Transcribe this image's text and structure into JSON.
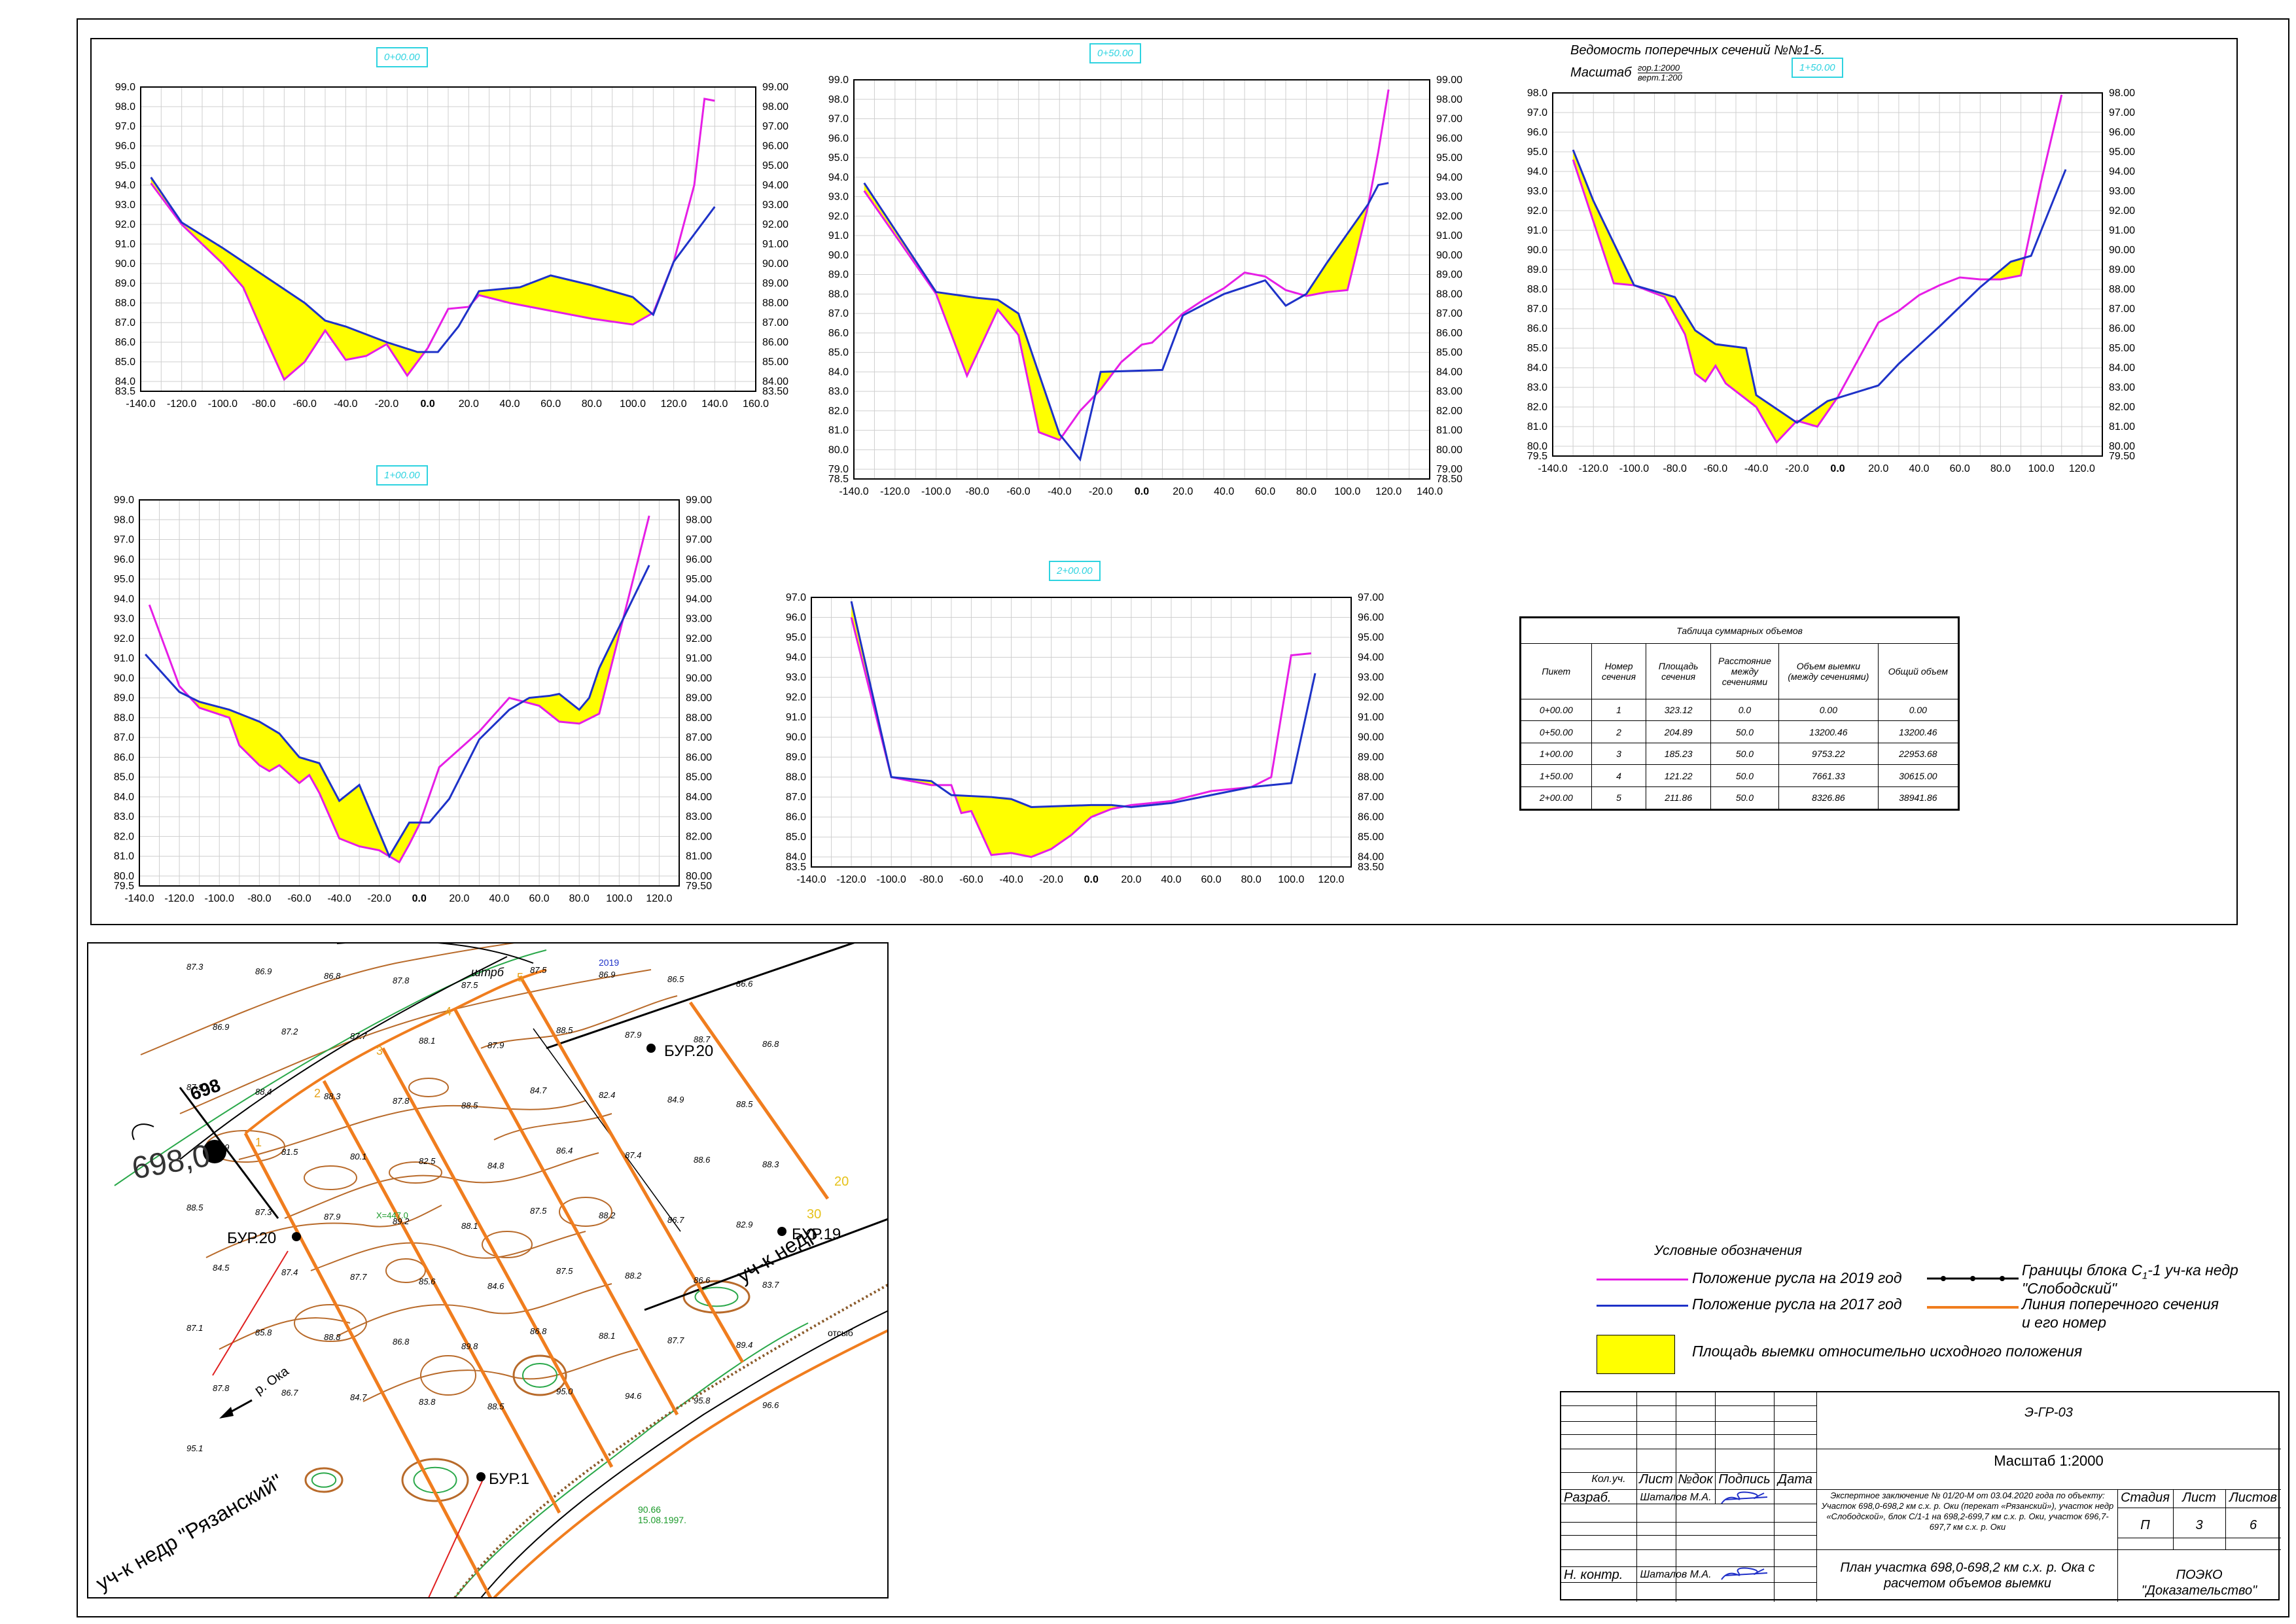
{
  "header": {
    "vedomost_title": "Ведомость поперечных сечений №№1-5.",
    "scale_label": "Масштаб",
    "scale_hor": "гор.1:2000",
    "scale_vert": "верт.1:200"
  },
  "chart_data": [
    {
      "type": "area",
      "title": "0+00.00",
      "x_ticks": [
        "-140.0",
        "-120.0",
        "-100.0",
        "-80.0",
        "-60.0",
        "-40.0",
        "-20.0",
        "0.0",
        "20.0",
        "40.0",
        "60.0",
        "80.0",
        "100.0",
        "120.0",
        "140.0",
        "160.0"
      ],
      "xlim": [
        -140,
        160
      ],
      "y_ticks_left": [
        "99.0",
        "98.0",
        "97.0",
        "96.0",
        "95.0",
        "94.0",
        "93.0",
        "92.0",
        "91.0",
        "90.0",
        "89.0",
        "88.0",
        "87.0",
        "86.0",
        "85.0",
        "84.0",
        "83.5"
      ],
      "y_ticks_right": [
        "99.00",
        "98.00",
        "97.00",
        "96.00",
        "95.00",
        "94.00",
        "93.00",
        "92.00",
        "91.00",
        "90.00",
        "89.00",
        "88.00",
        "87.00",
        "86.00",
        "85.00",
        "84.00",
        "83.50"
      ],
      "ylim": [
        83.5,
        99.0
      ],
      "series": [
        {
          "name": "Положение русла на 2019 год",
          "color": "#e61ee6",
          "x": [
            -135,
            -120,
            -100,
            -90,
            -80,
            -70,
            -60,
            -50,
            -40,
            -30,
            -20,
            -10,
            0,
            10,
            20,
            25,
            40,
            60,
            80,
            100,
            110,
            120,
            130,
            135,
            140
          ],
          "y": [
            94.1,
            92.0,
            90.0,
            88.8,
            86.4,
            84.1,
            85.0,
            86.6,
            85.1,
            85.3,
            85.9,
            84.3,
            85.7,
            87.7,
            87.8,
            88.4,
            88.0,
            87.6,
            87.2,
            86.9,
            87.5,
            90.1,
            94.0,
            98.4,
            98.3
          ]
        },
        {
          "name": "Положение русла на 2017 год",
          "color": "#1e32c8",
          "x": [
            -135,
            -120,
            -100,
            -80,
            -60,
            -50,
            -40,
            -20,
            -5,
            5,
            15,
            25,
            45,
            60,
            80,
            100,
            110,
            120,
            140
          ],
          "y": [
            94.4,
            92.1,
            90.8,
            89.4,
            88.0,
            87.1,
            86.8,
            86.0,
            85.5,
            85.5,
            86.8,
            88.6,
            88.8,
            89.4,
            88.9,
            88.3,
            87.4,
            90.1,
            92.9
          ]
        }
      ]
    },
    {
      "type": "area",
      "title": "0+50.00",
      "x_ticks": [
        "-140.0",
        "-120.0",
        "-100.0",
        "-80.0",
        "-60.0",
        "-40.0",
        "-20.0",
        "0.0",
        "20.0",
        "40.0",
        "60.0",
        "80.0",
        "100.0",
        "120.0",
        "140.0"
      ],
      "xlim": [
        -140,
        140
      ],
      "y_ticks_left": [
        "99.0",
        "98.0",
        "97.0",
        "96.0",
        "95.0",
        "94.0",
        "93.0",
        "92.0",
        "91.0",
        "90.0",
        "89.0",
        "88.0",
        "87.0",
        "86.0",
        "85.0",
        "84.0",
        "83.0",
        "82.0",
        "81.0",
        "80.0",
        "79.0",
        "78.5"
      ],
      "y_ticks_right": [
        "99.00",
        "98.00",
        "97.00",
        "96.00",
        "95.00",
        "94.00",
        "93.00",
        "92.00",
        "91.00",
        "90.00",
        "89.00",
        "88.00",
        "87.00",
        "86.00",
        "85.00",
        "84.00",
        "83.00",
        "82.00",
        "81.00",
        "80.00",
        "79.00",
        "78.50"
      ],
      "ylim": [
        78.5,
        99.0
      ],
      "series": [
        {
          "name": "Положение русла на 2019 год",
          "color": "#e61ee6",
          "x": [
            -135,
            -100,
            -85,
            -70,
            -60,
            -50,
            -40,
            -30,
            -20,
            -10,
            0,
            5,
            10,
            20,
            30,
            40,
            50,
            60,
            70,
            80,
            90,
            100,
            110,
            115,
            120
          ],
          "y": [
            93.3,
            88.0,
            83.8,
            87.2,
            85.9,
            80.9,
            80.5,
            82.0,
            83.1,
            84.5,
            85.4,
            85.5,
            86.0,
            87.0,
            87.7,
            88.3,
            89.1,
            88.9,
            88.2,
            87.9,
            88.1,
            88.2,
            92.5,
            95.3,
            98.5
          ]
        },
        {
          "name": "Положение русла на 2017 год",
          "color": "#1e32c8",
          "x": [
            -135,
            -100,
            -80,
            -70,
            -60,
            -40,
            -30,
            -20,
            10,
            20,
            40,
            60,
            70,
            80,
            90,
            100,
            110,
            115,
            120
          ],
          "y": [
            93.7,
            88.1,
            87.8,
            87.7,
            87.0,
            80.8,
            79.5,
            84.0,
            84.1,
            86.9,
            88.0,
            88.7,
            87.4,
            88.0,
            89.6,
            91.1,
            92.6,
            93.6,
            93.7
          ]
        }
      ]
    },
    {
      "type": "area",
      "title": "1+50.00",
      "x_ticks": [
        "-140.0",
        "-120.0",
        "-100.0",
        "-80.0",
        "-60.0",
        "-40.0",
        "-20.0",
        "0.0",
        "20.0",
        "40.0",
        "60.0",
        "80.0",
        "100.0",
        "120.0"
      ],
      "xlim": [
        -140,
        130
      ],
      "y_ticks_left": [
        "98.0",
        "97.0",
        "96.0",
        "95.0",
        "94.0",
        "93.0",
        "92.0",
        "91.0",
        "90.0",
        "89.0",
        "88.0",
        "87.0",
        "86.0",
        "85.0",
        "84.0",
        "83.0",
        "82.0",
        "81.0",
        "80.0",
        "79.5"
      ],
      "y_ticks_right": [
        "98.00",
        "97.00",
        "96.00",
        "95.00",
        "94.00",
        "93.00",
        "92.00",
        "91.00",
        "90.00",
        "89.00",
        "88.00",
        "87.00",
        "86.00",
        "85.00",
        "84.00",
        "83.00",
        "82.00",
        "81.00",
        "80.00",
        "79.50"
      ],
      "ylim": [
        79.5,
        98.0
      ],
      "series": [
        {
          "name": "Положение русла на 2019 год",
          "color": "#e61ee6",
          "x": [
            -130,
            -110,
            -100,
            -85,
            -75,
            -70,
            -65,
            -60,
            -55,
            -40,
            -30,
            -20,
            -10,
            0,
            20,
            30,
            40,
            50,
            60,
            70,
            80,
            90,
            100,
            110
          ],
          "y": [
            94.6,
            88.3,
            88.2,
            87.6,
            85.7,
            83.7,
            83.3,
            84.1,
            83.2,
            82.0,
            80.2,
            81.3,
            81.0,
            82.5,
            86.3,
            86.9,
            87.7,
            88.2,
            88.6,
            88.5,
            88.5,
            88.7,
            93.5,
            97.9
          ]
        },
        {
          "name": "Положение русла на 2017 год",
          "color": "#1e32c8",
          "x": [
            -130,
            -120,
            -100,
            -80,
            -70,
            -60,
            -45,
            -40,
            -20,
            -5,
            20,
            30,
            50,
            70,
            85,
            95,
            100,
            112
          ],
          "y": [
            95.1,
            92.5,
            88.2,
            87.6,
            85.9,
            85.2,
            85.0,
            82.6,
            81.2,
            82.3,
            83.1,
            84.2,
            86.1,
            88.1,
            89.4,
            89.7,
            91.0,
            94.1
          ]
        }
      ]
    },
    {
      "type": "area",
      "title": "1+00.00",
      "x_ticks": [
        "-140.0",
        "-120.0",
        "-100.0",
        "-80.0",
        "-60.0",
        "-40.0",
        "-20.0",
        "0.0",
        "20.0",
        "40.0",
        "60.0",
        "80.0",
        "100.0",
        "120.0"
      ],
      "xlim": [
        -140,
        130
      ],
      "y_ticks_left": [
        "99.0",
        "98.0",
        "97.0",
        "96.0",
        "95.0",
        "94.0",
        "93.0",
        "92.0",
        "91.0",
        "90.0",
        "89.0",
        "88.0",
        "87.0",
        "86.0",
        "85.0",
        "84.0",
        "83.0",
        "82.0",
        "81.0",
        "80.0",
        "79.5"
      ],
      "y_ticks_right": [
        "99.00",
        "98.00",
        "97.00",
        "96.00",
        "95.00",
        "94.00",
        "93.00",
        "92.00",
        "91.00",
        "90.00",
        "89.00",
        "88.00",
        "87.00",
        "86.00",
        "85.00",
        "84.00",
        "83.00",
        "82.00",
        "81.00",
        "80.00",
        "79.50"
      ],
      "ylim": [
        79.5,
        99.0
      ],
      "series": [
        {
          "name": "Положение русла на 2019 год",
          "color": "#e61ee6",
          "x": [
            -135,
            -120,
            -110,
            -95,
            -90,
            -80,
            -75,
            -70,
            -60,
            -55,
            -50,
            -40,
            -30,
            -20,
            -10,
            -5,
            0,
            10,
            30,
            45,
            60,
            70,
            80,
            90,
            115
          ],
          "y": [
            93.7,
            89.6,
            88.5,
            88.0,
            86.6,
            85.6,
            85.3,
            85.6,
            84.7,
            85.1,
            84.2,
            81.9,
            81.5,
            81.3,
            80.7,
            81.6,
            82.6,
            85.5,
            87.3,
            89.0,
            88.6,
            87.8,
            87.7,
            88.2,
            98.2
          ]
        },
        {
          "name": "Положение русла на 2017 год",
          "color": "#1e32c8",
          "x": [
            -137,
            -120,
            -110,
            -95,
            -80,
            -70,
            -60,
            -50,
            -40,
            -30,
            -15,
            -5,
            0,
            5,
            15,
            30,
            45,
            55,
            65,
            70,
            80,
            85,
            90,
            115
          ],
          "y": [
            91.2,
            89.3,
            88.8,
            88.4,
            87.8,
            87.2,
            86.0,
            85.7,
            83.8,
            84.6,
            81.0,
            82.7,
            82.7,
            82.7,
            83.9,
            86.9,
            88.4,
            89.0,
            89.1,
            89.2,
            88.4,
            89.0,
            90.5,
            95.7
          ]
        }
      ]
    },
    {
      "type": "area",
      "title": "2+00.00",
      "x_ticks": [
        "-140.0",
        "-120.0",
        "-100.0",
        "-80.0",
        "-60.0",
        "-40.0",
        "-20.0",
        "0.0",
        "20.0",
        "40.0",
        "60.0",
        "80.0",
        "100.0",
        "120.0"
      ],
      "xlim": [
        -140,
        130
      ],
      "y_ticks_left": [
        "97.0",
        "96.0",
        "95.0",
        "94.0",
        "93.0",
        "92.0",
        "91.0",
        "90.0",
        "89.0",
        "88.0",
        "87.0",
        "86.0",
        "85.0",
        "84.0",
        "83.5"
      ],
      "y_ticks_right": [
        "97.00",
        "96.00",
        "95.00",
        "94.00",
        "93.00",
        "92.00",
        "91.00",
        "90.00",
        "89.00",
        "88.00",
        "87.00",
        "86.00",
        "85.00",
        "84.00",
        "83.50"
      ],
      "ylim": [
        83.5,
        97.0
      ],
      "series": [
        {
          "name": "Положение русла на 2019 год",
          "color": "#e61ee6",
          "x": [
            -120,
            -100,
            -80,
            -70,
            -65,
            -60,
            -50,
            -40,
            -30,
            -20,
            -10,
            0,
            10,
            20,
            40,
            60,
            80,
            90,
            100,
            110
          ],
          "y": [
            96.0,
            88.0,
            87.6,
            87.6,
            86.2,
            86.3,
            84.1,
            84.2,
            84.0,
            84.4,
            85.1,
            86.0,
            86.4,
            86.6,
            86.8,
            87.3,
            87.5,
            88.0,
            94.1,
            94.2
          ]
        },
        {
          "name": "Положение русла на 2017 год",
          "color": "#1e32c8",
          "x": [
            -120,
            -100,
            -80,
            -70,
            -50,
            -40,
            -30,
            0,
            10,
            20,
            40,
            60,
            80,
            90,
            100,
            112
          ],
          "y": [
            96.8,
            88.0,
            87.8,
            87.1,
            87.0,
            86.9,
            86.5,
            86.6,
            86.6,
            86.5,
            86.7,
            87.1,
            87.5,
            87.6,
            87.7,
            93.2
          ]
        }
      ]
    }
  ],
  "volume_table": {
    "title": "Таблица суммарных объемов",
    "headers": [
      "Пикет",
      "Номер сечения",
      "Площадь сечения",
      "Расстояние между сечениями",
      "Объем выемки (между сечениями)",
      "Общий объем"
    ],
    "rows": [
      [
        "0+00.00",
        "1",
        "323.12",
        "0.0",
        "0.00",
        "0.00"
      ],
      [
        "0+50.00",
        "2",
        "204.89",
        "50.0",
        "13200.46",
        "13200.46"
      ],
      [
        "1+00.00",
        "3",
        "185.23",
        "50.0",
        "9753.22",
        "22953.68"
      ],
      [
        "1+50.00",
        "4",
        "121.22",
        "50.0",
        "7661.33",
        "30615.00"
      ],
      [
        "2+00.00",
        "5",
        "211.86",
        "50.0",
        "8326.86",
        "38941.86"
      ]
    ]
  },
  "legend": {
    "title": "Условные обозначения",
    "items": [
      {
        "label": "Положение русла на 2019 год",
        "color": "#e61ee6"
      },
      {
        "label": "Положение русла на 2017 год",
        "color": "#1e32c8"
      },
      {
        "label": "Площадь выемки относительно исходного положения",
        "color": "#ffff00"
      }
    ],
    "right_items": [
      {
        "label_a": "Границы блока С",
        "label_sub": "1",
        "label_b": "-1 уч-ка недр",
        "label_c": "\"Слободский\""
      },
      {
        "label_a": "Линия поперечного сечения",
        "label_c": "и его номер",
        "color": "#f07d1e"
      }
    ]
  },
  "stamp": {
    "doc_code": "Э-ГР-03",
    "scale": "Масштаб 1:2000",
    "col_headers": [
      "Кол.уч.",
      "Лист",
      "№док",
      "Подпись",
      "Дата"
    ],
    "expert_text": "Экспертное заключение № 01/20-М от 03.04.2020 года по объекту: Участок 698,0-698,2 км с.х. р. Оки (перекат «Рязанский»), участок недр «Слободской», блок С/1-1 на 698,2-699,7 км с.х. р. Оки, участок 696,7-697,7 км с.х. р. Оки",
    "stage_headers": [
      "Стадия",
      "Лист",
      "Листов"
    ],
    "stage_values": [
      "П",
      "3",
      "6"
    ],
    "rows": [
      {
        "role": "Разраб.",
        "name": "Шаталов М.А."
      },
      {
        "role": "Н. контр.",
        "name": "Шаталов М.А."
      }
    ],
    "sheet_title": "План участка 698,0-698,2 км с.х. р. Ока с расчетом объемов выемки",
    "org_line1": "ПОЭКО",
    "org_line2": "\"Доказательство\""
  },
  "map": {
    "bur_labels": [
      "БУР.20",
      "БУР.20",
      "БУР.19",
      "БУР.1"
    ],
    "km_post": "698",
    "km_big": "698,0",
    "uchastok_ryazan": "уч-к недр \"Рязанский\"",
    "uchastok_slob": "уч-к недр",
    "river": "р. Ока",
    "shtrb": "штрб",
    "year_2019": "2019",
    "sounding": [
      "87.3",
      "86.9",
      "86.8",
      "87.8",
      "87.5",
      "87.5",
      "86.9",
      "86.5",
      "86.6",
      "86.9",
      "87.2",
      "87.7",
      "88.1",
      "87.9",
      "88.5",
      "87.9",
      "88.7",
      "86.8",
      "87.9",
      "88.4",
      "88.3",
      "87.8",
      "88.5",
      "84.7",
      "82.4",
      "84.9",
      "88.5",
      "88.9",
      "81.5",
      "80.1",
      "82.5",
      "84.8",
      "86.4",
      "87.4",
      "88.6",
      "88.3",
      "88.5",
      "87.3",
      "87.9",
      "89.2",
      "88.1",
      "87.5",
      "88.2",
      "86.7",
      "82.9",
      "84.5",
      "87.4",
      "87.7",
      "85.6",
      "84.6",
      "87.5",
      "88.2",
      "86.6",
      "83.7",
      "87.1",
      "85.8",
      "88.8",
      "86.8",
      "89.8",
      "86.8",
      "88.1",
      "87.7",
      "89.4",
      "87.8",
      "86.7",
      "84.7",
      "83.8",
      "88.5",
      "95.0",
      "94.6",
      "95.8",
      "96.6",
      "95.1"
    ],
    "sections": [
      "1",
      "2",
      "3",
      "4",
      "5"
    ],
    "mark_30": "30",
    "mark_20": "20",
    "contour_value": "90.66",
    "contour_date": "15.08.1997.",
    "coord_label": "Х=447.0",
    "sign_label": "отсыб"
  }
}
